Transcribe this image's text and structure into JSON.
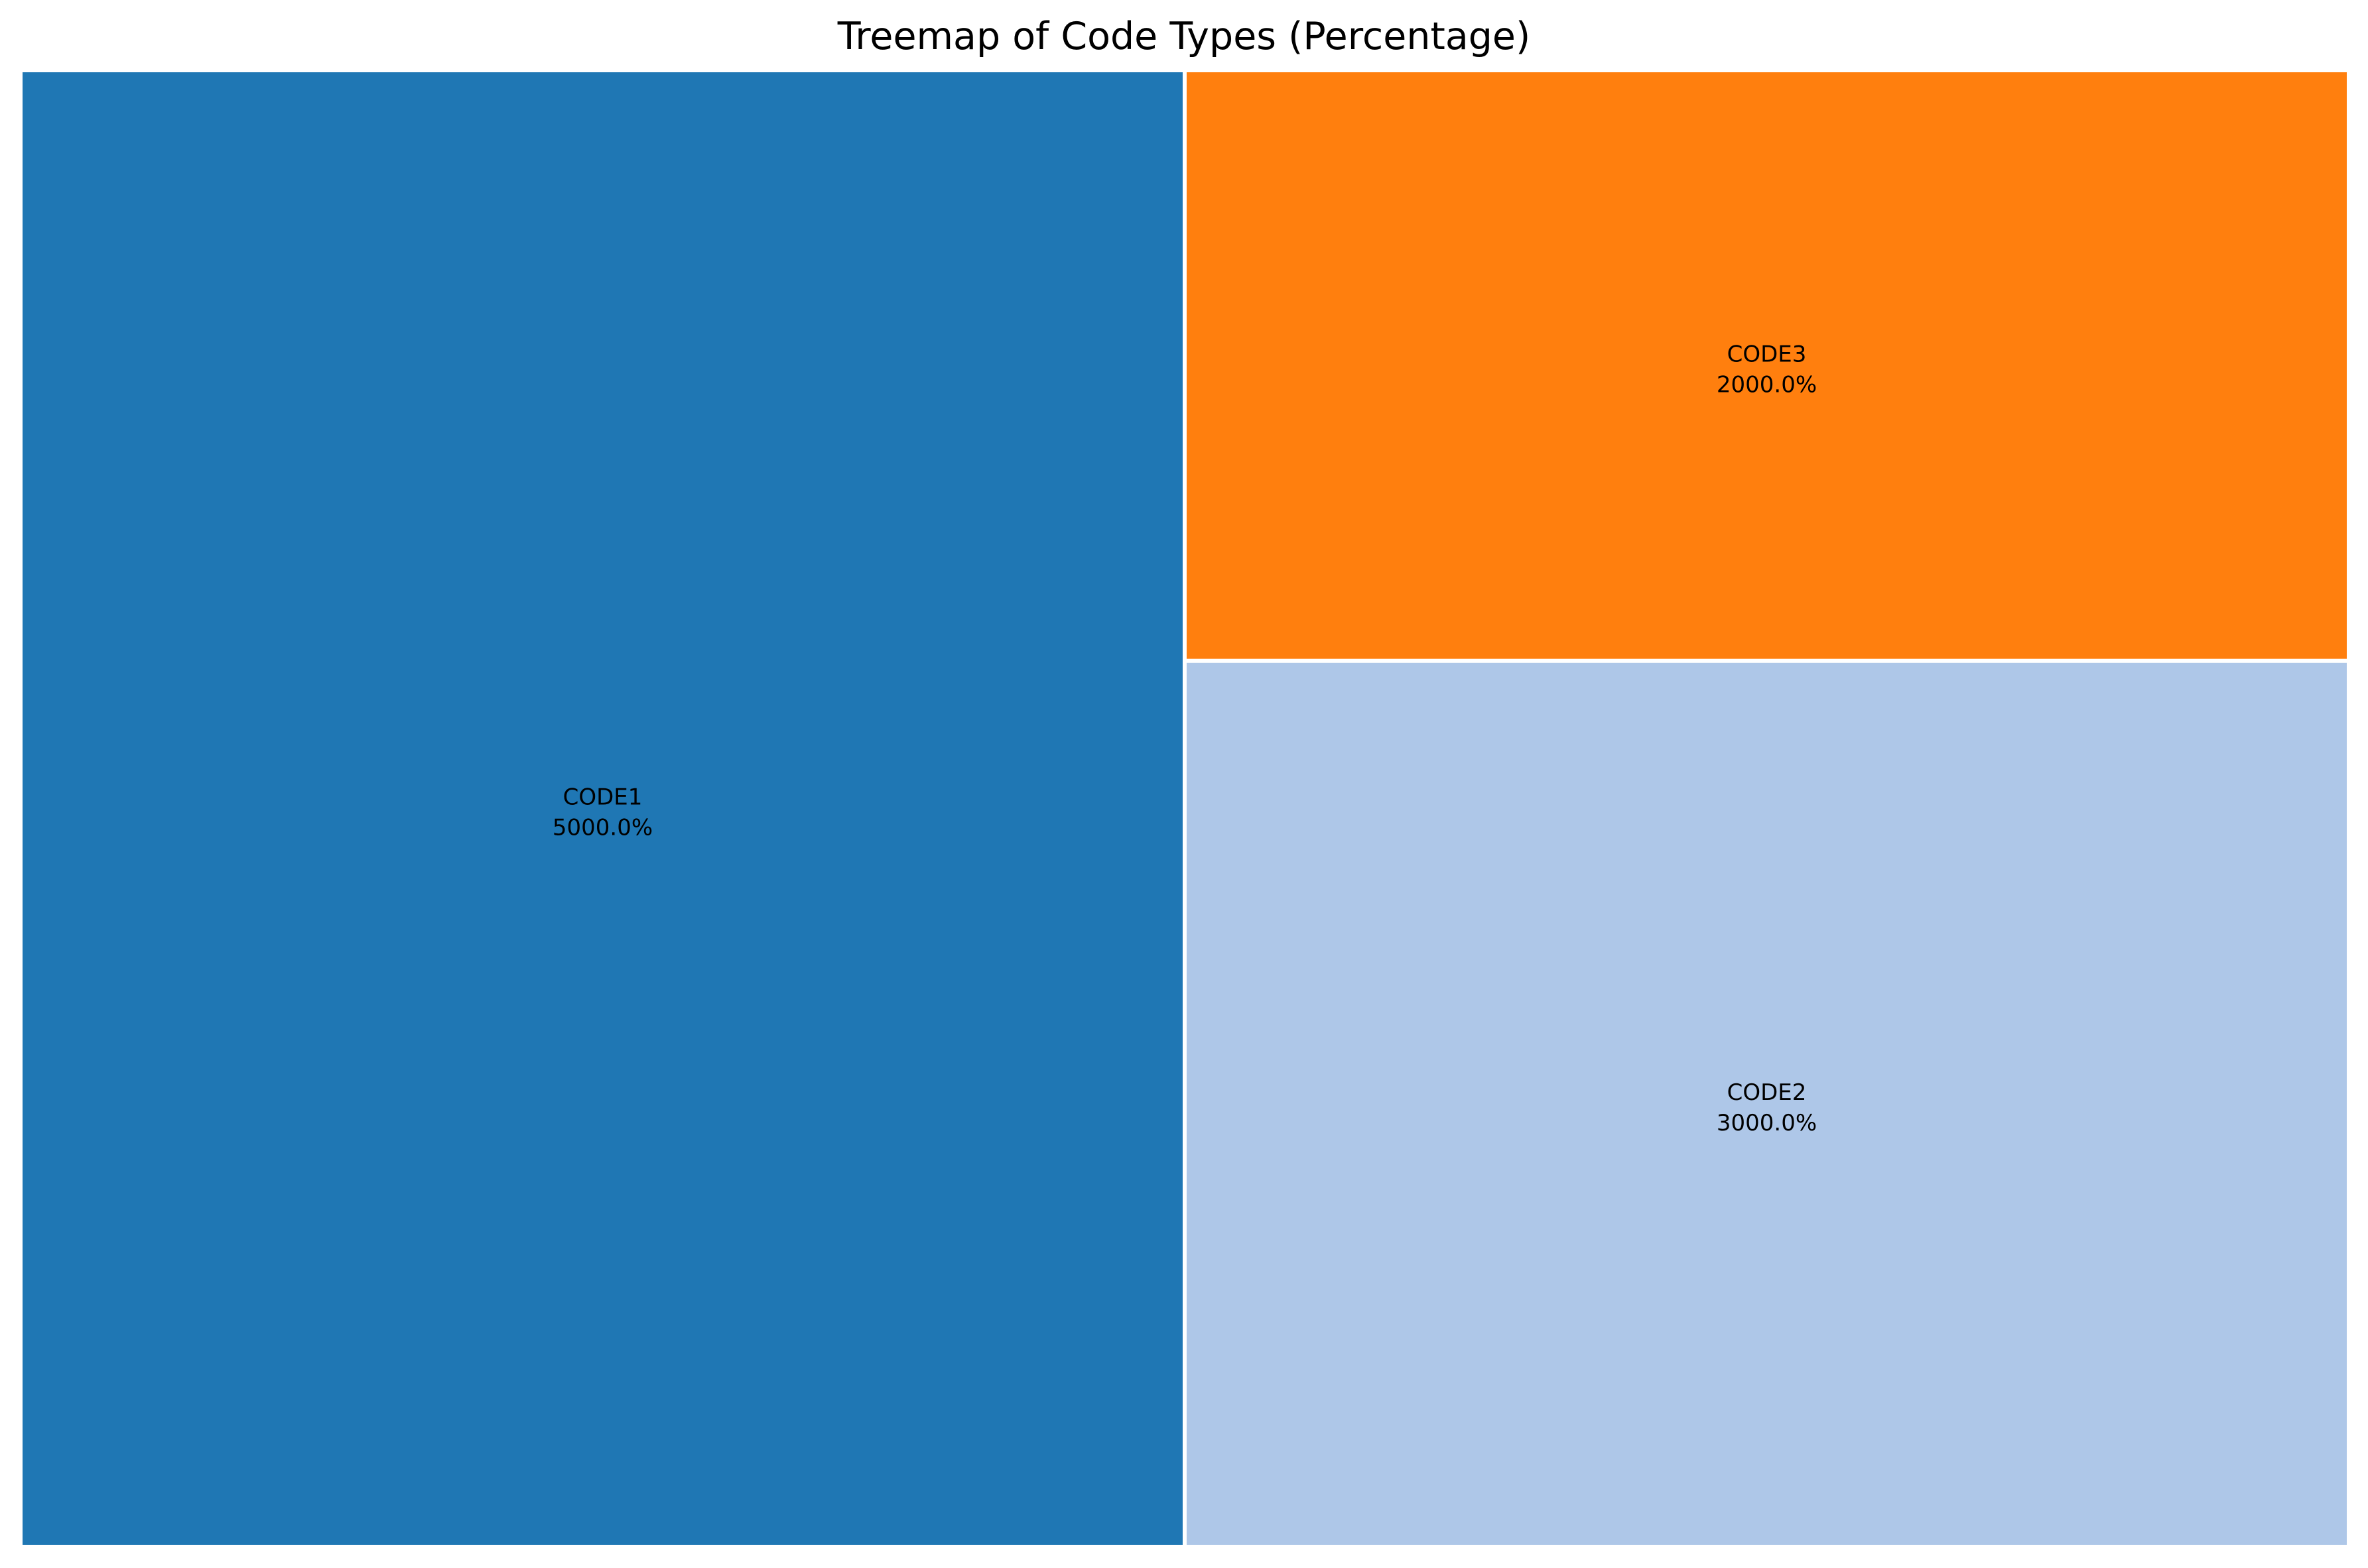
{
  "chart_data": {
    "type": "treemap",
    "title": "Treemap of Code Types (Percentage)",
    "xlabel": "",
    "ylabel": "",
    "grid": false,
    "legend": "none",
    "tiles": [
      {
        "name": "CODE1",
        "value": 5000.0,
        "label": "5000.0%",
        "color": "#1f77b4"
      },
      {
        "name": "CODE3",
        "value": 2000.0,
        "label": "2000.0%",
        "color": "#ff7f0e"
      },
      {
        "name": "CODE2",
        "value": 3000.0,
        "label": "3000.0%",
        "color": "#aec7e8"
      }
    ]
  }
}
